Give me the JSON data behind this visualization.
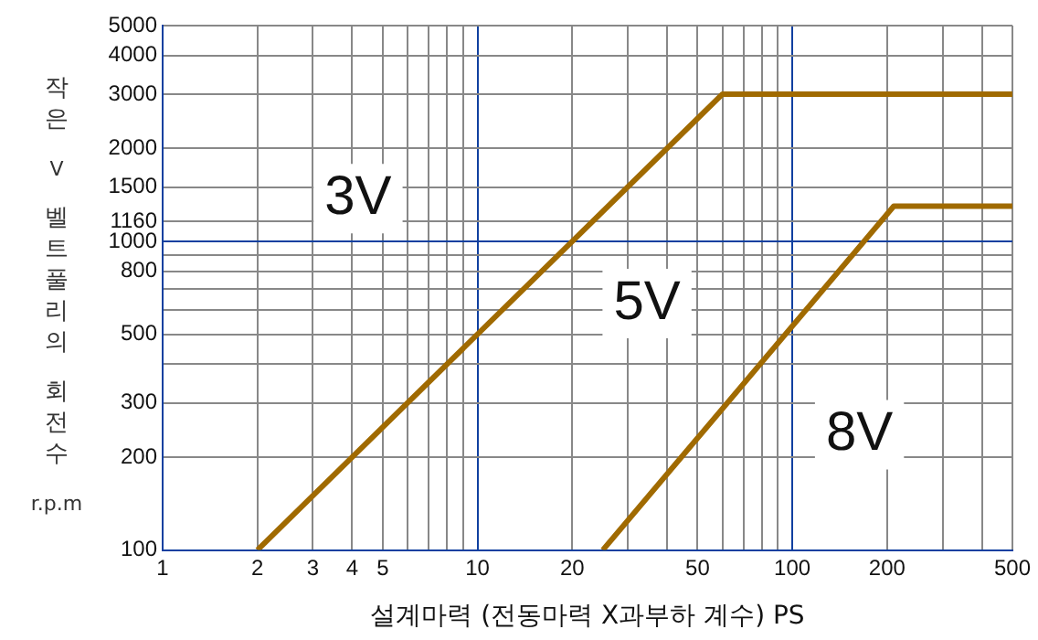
{
  "chart_data": {
    "type": "line",
    "xlabel": "설계마력 (전동마력 X과부하 계수) PS",
    "ylabel": "작은 V 벨트풀리의 회전수 r.p.m",
    "log": "xy",
    "grid": true,
    "legend": false,
    "marker": "none",
    "line_style": "solid",
    "xlim": [
      1,
      500
    ],
    "ylim": [
      100,
      5000
    ],
    "xticks": [
      1,
      2,
      3,
      4,
      5,
      {
        "value": 6,
        "label": null
      },
      {
        "value": 7,
        "label": null
      },
      {
        "value": 8,
        "label": null
      },
      {
        "value": 9,
        "label": null
      },
      10,
      20,
      {
        "value": 30,
        "label": null
      },
      {
        "value": 40,
        "label": null
      },
      50,
      {
        "value": 60,
        "label": null
      },
      {
        "value": 70,
        "label": null
      },
      {
        "value": 80,
        "label": null
      },
      {
        "value": 90,
        "label": null
      },
      100,
      200,
      {
        "value": 300,
        "label": null
      },
      {
        "value": 400,
        "label": null
      },
      500
    ],
    "yticks": [
      100,
      200,
      300,
      {
        "value": 400,
        "label": null
      },
      500,
      {
        "value": 600,
        "label": null
      },
      {
        "value": 700,
        "label": null
      },
      800,
      {
        "value": 900,
        "label": null
      },
      1000,
      1160,
      1500,
      2000,
      3000,
      4000,
      5000
    ],
    "series": [
      {
        "color": "#a06a00",
        "x": [
          2,
          60,
          500
        ],
        "values": [
          100,
          3000,
          3000
        ]
      },
      {
        "color": "#a06a00",
        "x": [
          25,
          210,
          500
        ],
        "values": [
          100,
          1300,
          1300
        ]
      }
    ],
    "annotations": [
      "3V",
      "5V",
      "8V"
    ]
  }
}
